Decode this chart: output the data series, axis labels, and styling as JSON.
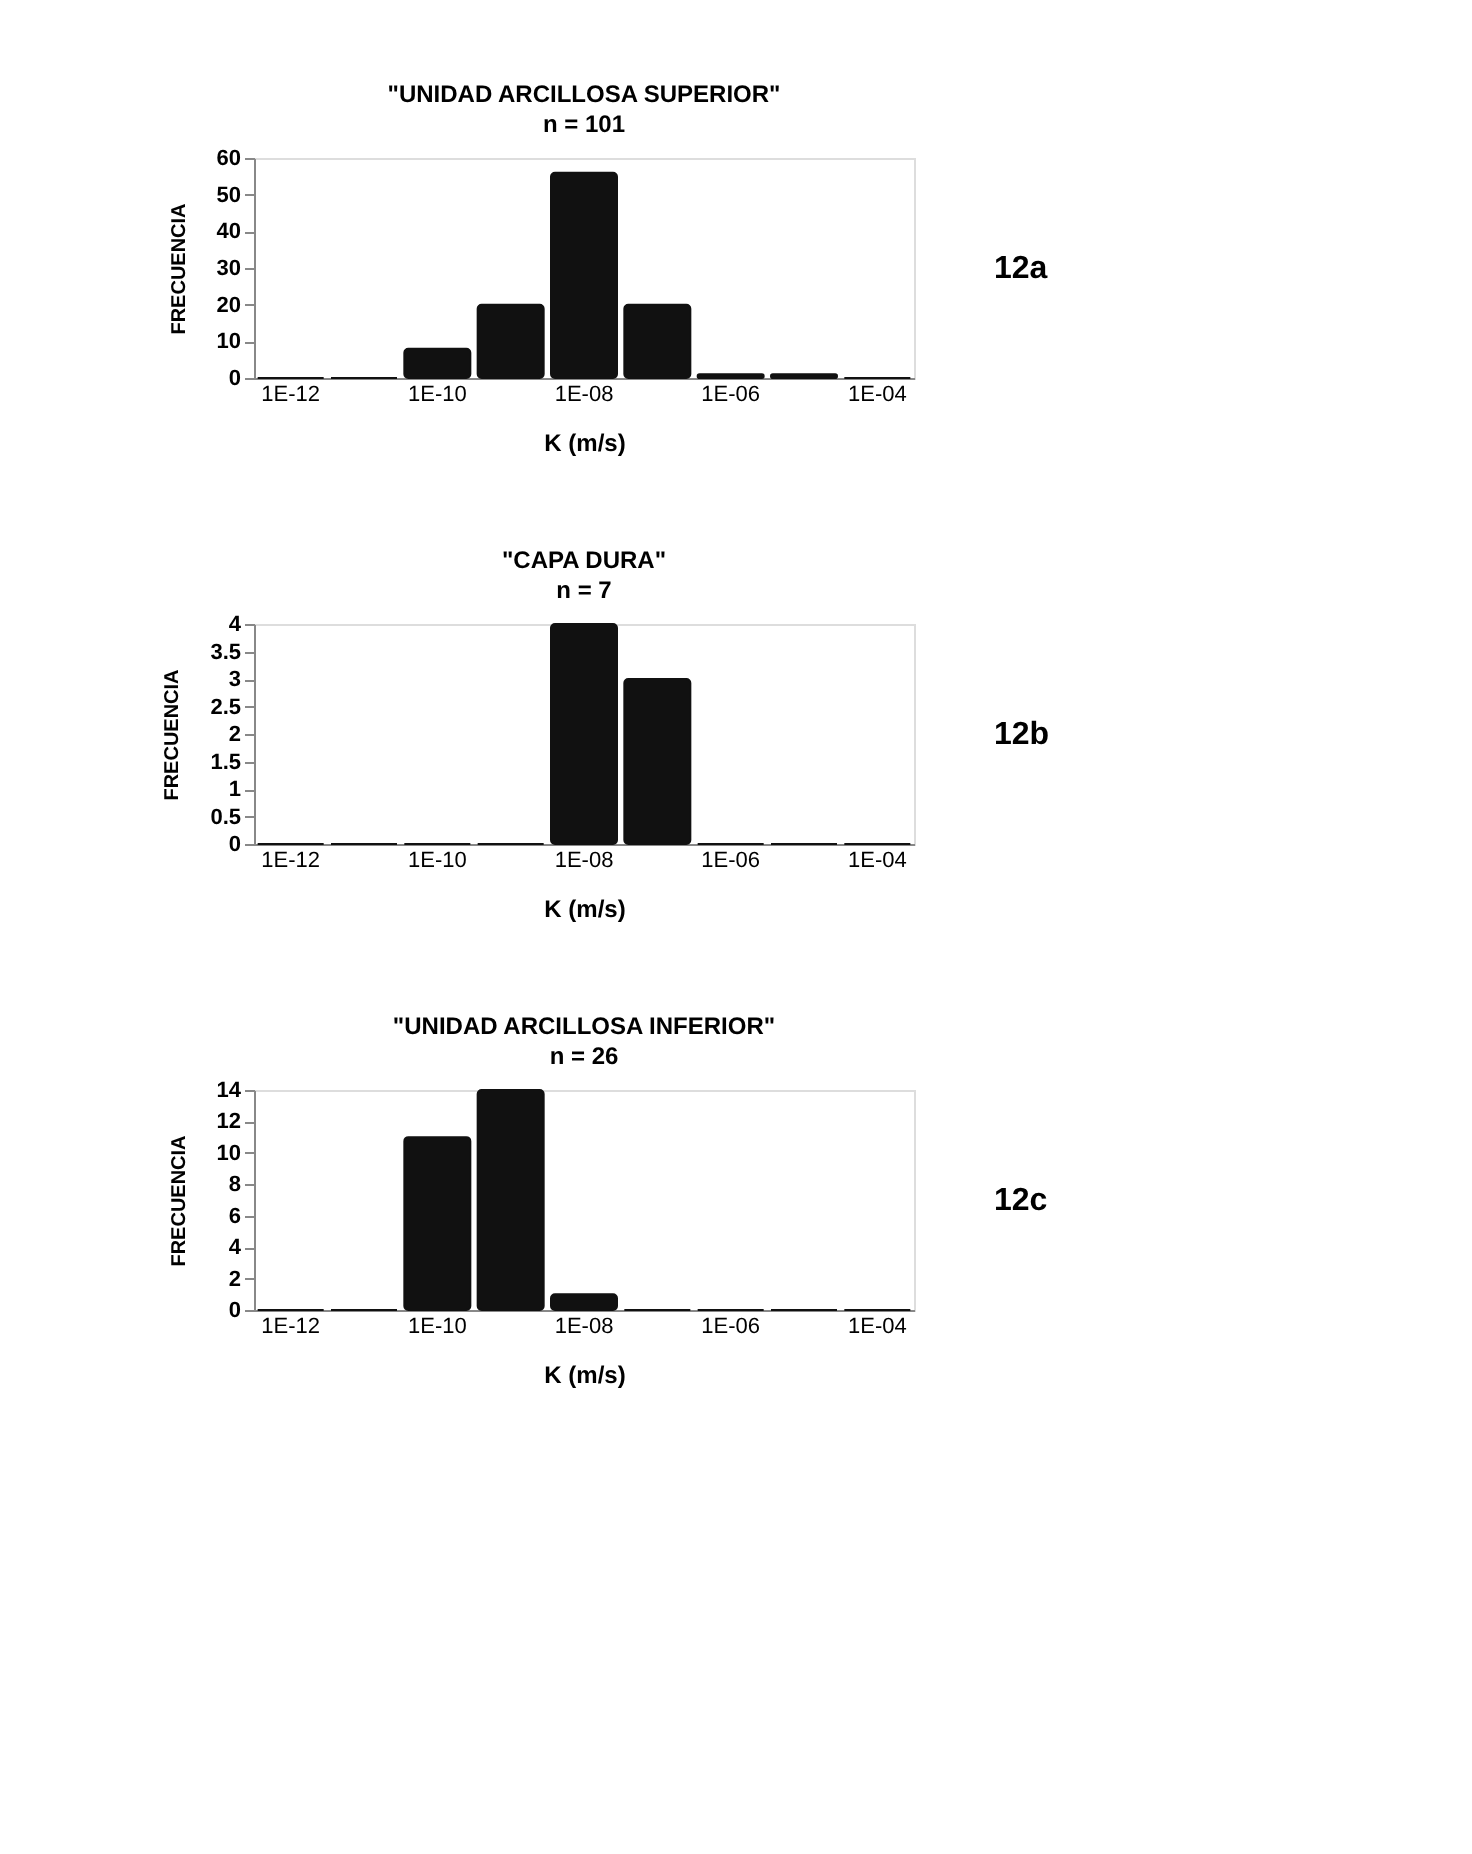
{
  "chart_data": [
    {
      "type": "bar",
      "title": "\"UNIDAD ARCILLOSA SUPERIOR\"",
      "subtitle": "n = 101",
      "xlabel": "K (m/s)",
      "ylabel": "FRECUENCIA",
      "categories": [
        "1E-12",
        null,
        "1E-10",
        null,
        "1E-08",
        null,
        "1E-06",
        null,
        "1E-04"
      ],
      "values": [
        0,
        0,
        8,
        20,
        56,
        20,
        1,
        1,
        0
      ],
      "color": "#111111",
      "ylim": [
        0,
        60
      ],
      "yticks": [
        0,
        10,
        20,
        30,
        40,
        50,
        60
      ],
      "grid": false,
      "annotations": [
        "12a"
      ]
    },
    {
      "type": "bar",
      "title": "\"CAPA DURA\"",
      "subtitle": "n = 7",
      "xlabel": "K (m/s)",
      "ylabel": "FRECUENCIA",
      "categories": [
        "1E-12",
        null,
        "1E-10",
        null,
        "1E-08",
        null,
        "1E-06",
        null,
        "1E-04"
      ],
      "values": [
        0,
        0,
        0,
        0,
        4,
        3,
        0,
        0,
        0
      ],
      "color": "#111111",
      "ylim": [
        0,
        4
      ],
      "yticks": [
        0,
        0.5,
        1,
        1.5,
        2,
        2.5,
        3,
        3.5,
        4
      ],
      "grid": false,
      "annotations": [
        "12b"
      ]
    },
    {
      "type": "bar",
      "title": "\"UNIDAD ARCILLOSA INFERIOR\"",
      "subtitle": "n = 26",
      "xlabel": "K (m/s)",
      "ylabel": "FRECUENCIA",
      "categories": [
        "1E-12",
        null,
        "1E-10",
        null,
        "1E-08",
        null,
        "1E-06",
        null,
        "1E-04"
      ],
      "values": [
        0,
        0,
        11,
        14,
        1,
        0,
        0,
        0,
        0
      ],
      "color": "#111111",
      "ylim": [
        0,
        14
      ],
      "yticks": [
        0,
        2,
        4,
        6,
        8,
        10,
        12,
        14
      ],
      "grid": false,
      "annotations": [
        "12c"
      ]
    }
  ]
}
